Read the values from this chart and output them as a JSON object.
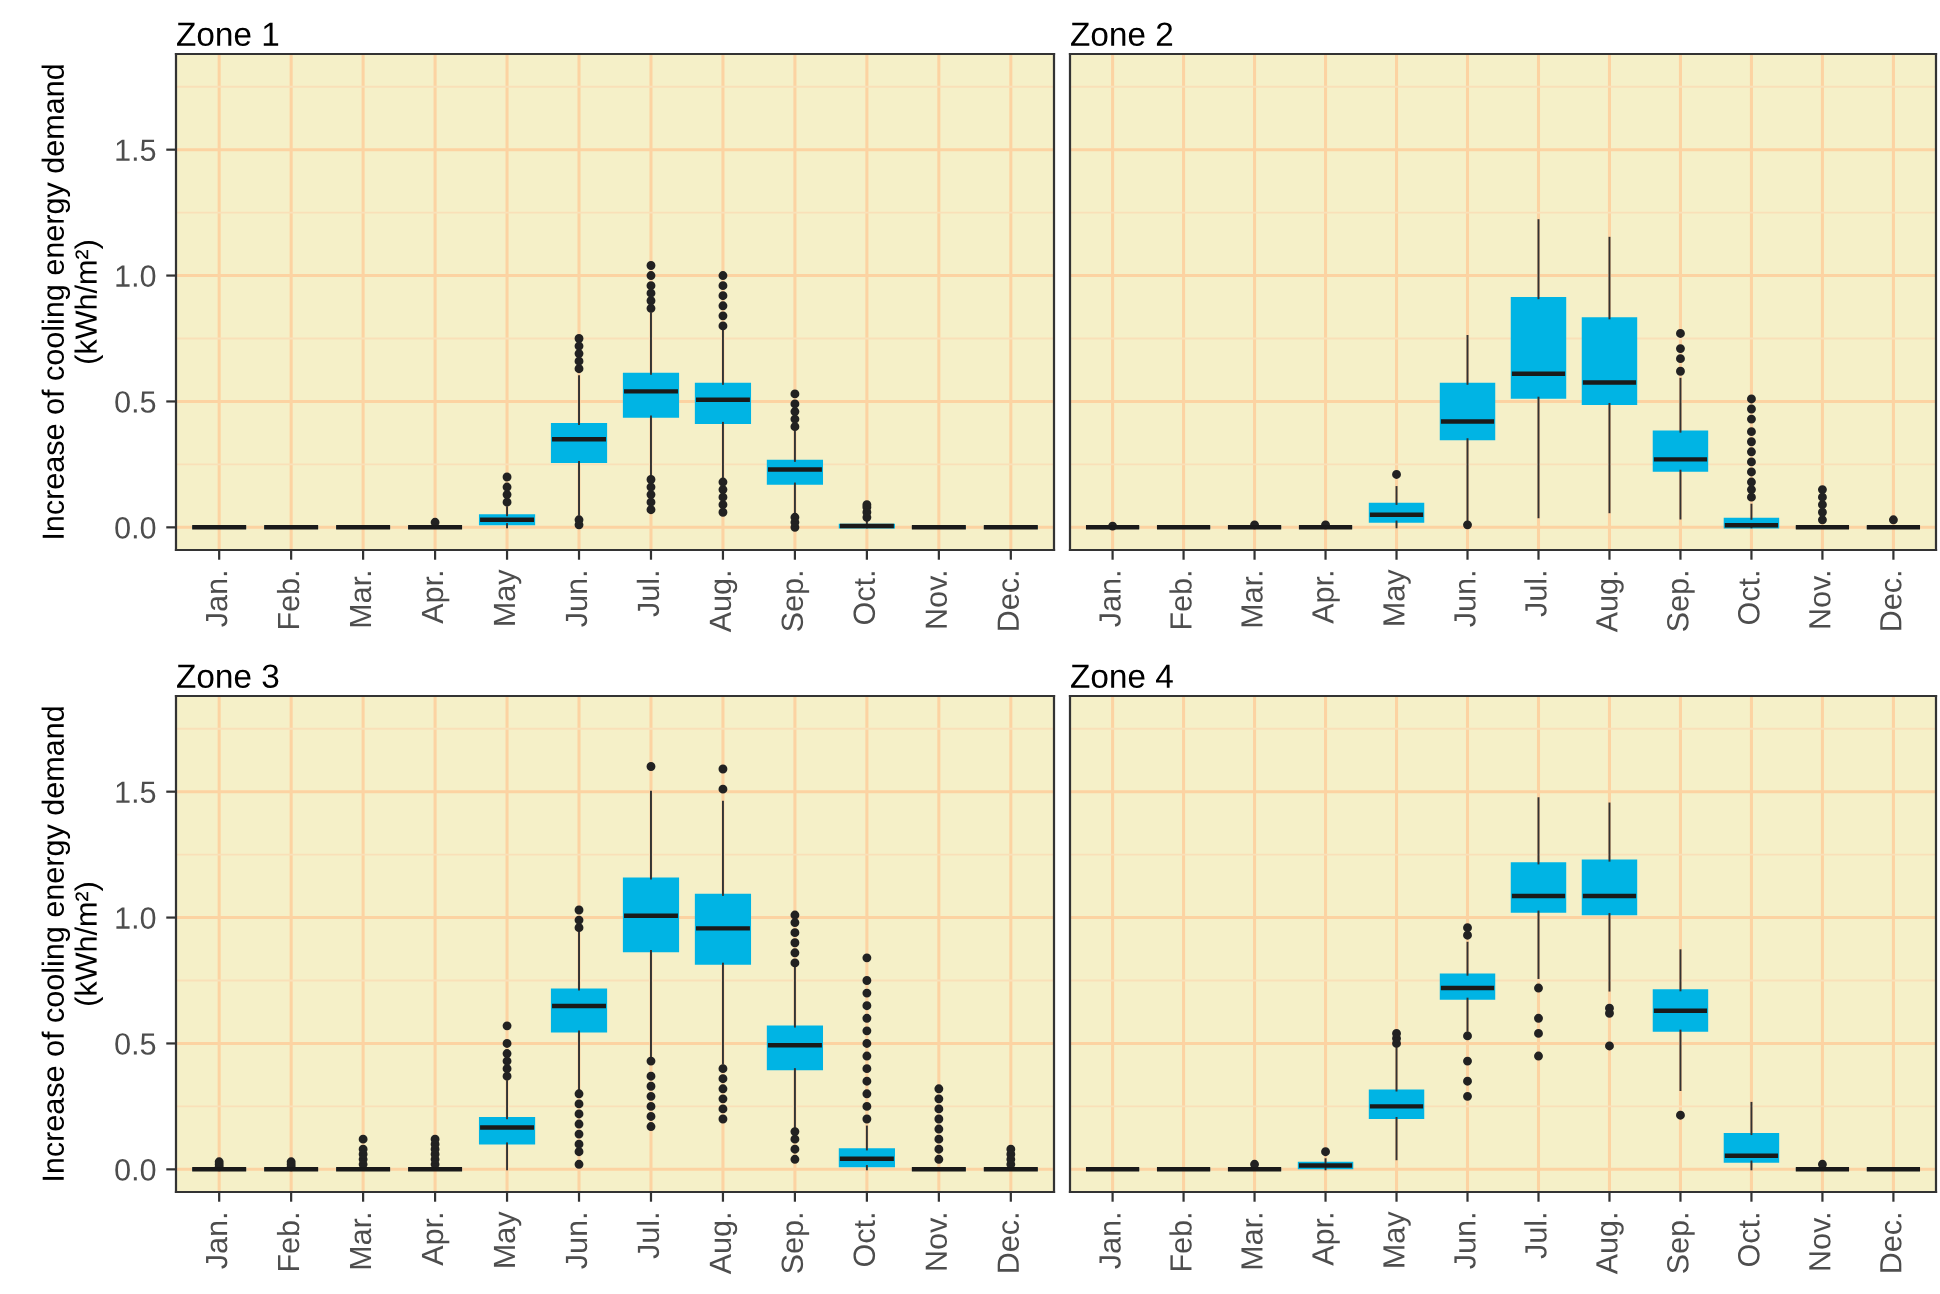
{
  "chart_data": [
    {
      "type": "box",
      "title": "Zone 1",
      "ylabel": "Increase of cooling energy demand\n(kWh/m²)",
      "categories": [
        "Jan.",
        "Feb.",
        "Mar.",
        "Apr.",
        "May",
        "Jun.",
        "Jul.",
        "Aug.",
        "Sep.",
        "Oct.",
        "Nov.",
        "Dec."
      ],
      "ylim": [
        -0.09,
        1.88
      ],
      "yticks": [
        {
          "value": 0,
          "label": "0.0"
        },
        {
          "value": 0.25,
          "label": null
        },
        {
          "value": 0.5,
          "label": "0.5"
        },
        {
          "value": 0.75,
          "label": null
        },
        {
          "value": 1,
          "label": "1.0"
        },
        {
          "value": 1.25,
          "label": null
        },
        {
          "value": 1.5,
          "label": "1.5"
        },
        {
          "value": 1.75,
          "label": null
        }
      ],
      "grid": true,
      "color": "#00b4e4",
      "boxes": [
        {
          "low": 0,
          "q1": 0,
          "median": 0,
          "q3": 0,
          "high": 0
        },
        {
          "low": 0,
          "q1": 0,
          "median": 0,
          "q3": 0,
          "high": 0
        },
        {
          "low": 0,
          "q1": 0,
          "median": 0,
          "q3": 0,
          "high": 0
        },
        {
          "low": 0,
          "q1": 0,
          "median": 0,
          "q3": 0,
          "high": 0,
          "outliers": [
            0.02
          ]
        },
        {
          "low": 0,
          "q1": 0.013,
          "median": 0.03,
          "q3": 0.048,
          "high": 0.08,
          "outliers": [
            0.1,
            0.13,
            0.16,
            0.2
          ]
        },
        {
          "low": 0.05,
          "q1": 0.26,
          "median": 0.35,
          "q3": 0.41,
          "high": 0.6,
          "outliers": [
            0.63,
            0.66,
            0.69,
            0.72,
            0.75,
            0.01,
            0.03
          ]
        },
        {
          "low": 0.2,
          "q1": 0.44,
          "median": 0.54,
          "q3": 0.61,
          "high": 0.85,
          "outliers": [
            0.87,
            0.9,
            0.93,
            0.96,
            1.0,
            1.04,
            0.07,
            0.1,
            0.13,
            0.16,
            0.19
          ]
        },
        {
          "low": 0.2,
          "q1": 0.415,
          "median": 0.507,
          "q3": 0.57,
          "high": 0.78,
          "outliers": [
            0.8,
            0.84,
            0.88,
            0.92,
            0.96,
            1.0,
            0.06,
            0.09,
            0.12,
            0.15,
            0.18
          ]
        },
        {
          "low": 0.05,
          "q1": 0.174,
          "median": 0.23,
          "q3": 0.264,
          "high": 0.38,
          "outliers": [
            0.4,
            0.43,
            0.46,
            0.49,
            0.53,
            0.0,
            0.02,
            0.04
          ]
        },
        {
          "low": 0,
          "q1": 0,
          "median": 0.005,
          "q3": 0.01,
          "high": 0.03,
          "outliers": [
            0.04,
            0.06,
            0.08,
            0.09
          ]
        },
        {
          "low": 0,
          "q1": 0,
          "median": 0,
          "q3": 0,
          "high": 0
        },
        {
          "low": 0,
          "q1": 0,
          "median": 0,
          "q3": 0,
          "high": 0
        }
      ]
    },
    {
      "type": "box",
      "title": "Zone 2",
      "categories": [
        "Jan.",
        "Feb.",
        "Mar.",
        "Apr.",
        "May",
        "Jun.",
        "Jul.",
        "Aug.",
        "Sep.",
        "Oct.",
        "Nov.",
        "Dec."
      ],
      "ylim": [
        -0.09,
        1.88
      ],
      "yticks": [
        {
          "value": 0,
          "label": null
        },
        {
          "value": 0.25,
          "label": null
        },
        {
          "value": 0.5,
          "label": null
        },
        {
          "value": 0.75,
          "label": null
        },
        {
          "value": 1,
          "label": null
        },
        {
          "value": 1.25,
          "label": null
        },
        {
          "value": 1.5,
          "label": null
        },
        {
          "value": 1.75,
          "label": null
        }
      ],
      "tick_labels": "x",
      "grid": true,
      "color": "#00b4e4",
      "boxes": [
        {
          "low": 0,
          "q1": 0,
          "median": 0,
          "q3": 0,
          "high": 0,
          "outliers": [
            0.005
          ]
        },
        {
          "low": 0,
          "q1": 0,
          "median": 0,
          "q3": 0,
          "high": 0
        },
        {
          "low": 0,
          "q1": 0,
          "median": 0,
          "q3": 0,
          "high": 0,
          "outliers": [
            0.01
          ]
        },
        {
          "low": 0,
          "q1": 0,
          "median": 0,
          "q3": 0,
          "high": 0,
          "outliers": [
            0.01
          ]
        },
        {
          "low": 0,
          "q1": 0.023,
          "median": 0.05,
          "q3": 0.093,
          "high": 0.16,
          "outliers": [
            0.21
          ]
        },
        {
          "low": 0.02,
          "q1": 0.35,
          "median": 0.42,
          "q3": 0.57,
          "high": 0.76,
          "outliers": [
            0.01
          ]
        },
        {
          "low": 0.04,
          "q1": 0.515,
          "median": 0.61,
          "q3": 0.91,
          "high": 1.22
        },
        {
          "low": 0.06,
          "q1": 0.49,
          "median": 0.575,
          "q3": 0.83,
          "high": 1.15
        },
        {
          "low": 0.035,
          "q1": 0.225,
          "median": 0.27,
          "q3": 0.38,
          "high": 0.59,
          "outliers": [
            0.62,
            0.67,
            0.71,
            0.77
          ]
        },
        {
          "low": 0,
          "q1": 0,
          "median": 0.008,
          "q3": 0.034,
          "high": 0.09,
          "outliers": [
            0.12,
            0.15,
            0.18,
            0.22,
            0.26,
            0.3,
            0.34,
            0.38,
            0.43,
            0.47,
            0.51
          ]
        },
        {
          "low": 0,
          "q1": 0,
          "median": 0,
          "q3": 0,
          "high": 0,
          "outliers": [
            0.03,
            0.06,
            0.09,
            0.12,
            0.15
          ]
        },
        {
          "low": 0,
          "q1": 0,
          "median": 0,
          "q3": 0,
          "high": 0,
          "outliers": [
            0.03
          ]
        }
      ]
    },
    {
      "type": "box",
      "title": "Zone 3",
      "ylabel": "Increase of cooling energy demand\n(kWh/m²)",
      "categories": [
        "Jan.",
        "Feb.",
        "Mar.",
        "Apr.",
        "May",
        "Jun.",
        "Jul.",
        "Aug.",
        "Sep.",
        "Oct.",
        "Nov.",
        "Dec."
      ],
      "ylim": [
        -0.09,
        1.88
      ],
      "yticks": [
        {
          "value": 0,
          "label": "0.0"
        },
        {
          "value": 0.25,
          "label": null
        },
        {
          "value": 0.5,
          "label": "0.5"
        },
        {
          "value": 0.75,
          "label": null
        },
        {
          "value": 1,
          "label": "1.0"
        },
        {
          "value": 1.25,
          "label": null
        },
        {
          "value": 1.5,
          "label": "1.5"
        },
        {
          "value": 1.75,
          "label": null
        }
      ],
      "grid": true,
      "color": "#00b4e4",
      "boxes": [
        {
          "low": 0,
          "q1": 0,
          "median": 0,
          "q3": 0,
          "high": 0,
          "outliers": [
            0.01,
            0.02,
            0.03
          ]
        },
        {
          "low": 0,
          "q1": 0,
          "median": 0,
          "q3": 0,
          "high": 0,
          "outliers": [
            0.01,
            0.02,
            0.03
          ]
        },
        {
          "low": 0,
          "q1": 0,
          "median": 0,
          "q3": 0,
          "high": 0,
          "outliers": [
            0.02,
            0.04,
            0.06,
            0.08,
            0.12
          ]
        },
        {
          "low": 0,
          "q1": 0,
          "median": 0,
          "q3": 0,
          "high": 0,
          "outliers": [
            0.02,
            0.04,
            0.06,
            0.08,
            0.1,
            0.12
          ]
        },
        {
          "low": 0,
          "q1": 0.103,
          "median": 0.166,
          "q3": 0.203,
          "high": 0.35,
          "outliers": [
            0.37,
            0.4,
            0.43,
            0.46,
            0.5,
            0.57
          ]
        },
        {
          "low": 0.31,
          "q1": 0.548,
          "median": 0.649,
          "q3": 0.714,
          "high": 0.95,
          "outliers": [
            0.96,
            0.99,
            1.03,
            0.02,
            0.07,
            0.1,
            0.14,
            0.18,
            0.22,
            0.26,
            0.3
          ]
        },
        {
          "low": 0.45,
          "q1": 0.867,
          "median": 1.007,
          "q3": 1.155,
          "high": 1.5,
          "outliers": [
            1.6,
            0.17,
            0.21,
            0.25,
            0.29,
            0.33,
            0.37,
            0.43
          ]
        },
        {
          "low": 0.42,
          "q1": 0.817,
          "median": 0.957,
          "q3": 1.09,
          "high": 1.46,
          "outliers": [
            1.51,
            1.59,
            0.2,
            0.24,
            0.28,
            0.32,
            0.36,
            0.4
          ]
        },
        {
          "low": 0.16,
          "q1": 0.398,
          "median": 0.493,
          "q3": 0.567,
          "high": 0.8,
          "outliers": [
            0.82,
            0.86,
            0.9,
            0.94,
            0.98,
            1.01,
            0.04,
            0.08,
            0.12,
            0.15
          ]
        },
        {
          "low": 0,
          "q1": 0.013,
          "median": 0.042,
          "q3": 0.079,
          "high": 0.17,
          "outliers": [
            0.2,
            0.25,
            0.3,
            0.35,
            0.4,
            0.45,
            0.5,
            0.55,
            0.6,
            0.65,
            0.7,
            0.75,
            0.84
          ]
        },
        {
          "low": 0,
          "q1": 0,
          "median": 0,
          "q3": 0,
          "high": 0,
          "outliers": [
            0.04,
            0.08,
            0.12,
            0.16,
            0.2,
            0.24,
            0.28,
            0.32
          ]
        },
        {
          "low": 0,
          "q1": 0,
          "median": 0,
          "q3": 0,
          "high": 0,
          "outliers": [
            0.02,
            0.04,
            0.06,
            0.08
          ]
        }
      ]
    },
    {
      "type": "box",
      "title": "Zone 4",
      "categories": [
        "Jan.",
        "Feb.",
        "Mar.",
        "Apr.",
        "May",
        "Jun.",
        "Jul.",
        "Aug.",
        "Sep.",
        "Oct.",
        "Nov.",
        "Dec."
      ],
      "ylim": [
        -0.09,
        1.88
      ],
      "yticks": [
        {
          "value": 0,
          "label": null
        },
        {
          "value": 0.25,
          "label": null
        },
        {
          "value": 0.5,
          "label": null
        },
        {
          "value": 0.75,
          "label": null
        },
        {
          "value": 1,
          "label": null
        },
        {
          "value": 1.25,
          "label": null
        },
        {
          "value": 1.5,
          "label": null
        },
        {
          "value": 1.75,
          "label": null
        }
      ],
      "tick_labels": "x",
      "grid": true,
      "color": "#00b4e4",
      "boxes": [
        {
          "low": 0,
          "q1": 0,
          "median": 0,
          "q3": 0,
          "high": 0
        },
        {
          "low": 0,
          "q1": 0,
          "median": 0,
          "q3": 0,
          "high": 0
        },
        {
          "low": 0,
          "q1": 0,
          "median": 0,
          "q3": 0,
          "high": 0,
          "outliers": [
            0.02
          ]
        },
        {
          "low": 0,
          "q1": 0.005,
          "median": 0.015,
          "q3": 0.026,
          "high": 0.04,
          "outliers": [
            0.07
          ]
        },
        {
          "low": 0.04,
          "q1": 0.204,
          "median": 0.25,
          "q3": 0.313,
          "high": 0.48,
          "outliers": [
            0.5,
            0.52,
            0.54
          ]
        },
        {
          "low": 0.55,
          "q1": 0.678,
          "median": 0.72,
          "q3": 0.773,
          "high": 0.9,
          "outliers": [
            0.93,
            0.96,
            0.53,
            0.43,
            0.35,
            0.29
          ]
        },
        {
          "low": 0.76,
          "q1": 1.024,
          "median": 1.086,
          "q3": 1.215,
          "high": 1.474,
          "outliers": [
            0.72,
            0.6,
            0.54,
            0.45
          ]
        },
        {
          "low": 0.71,
          "q1": 1.014,
          "median": 1.086,
          "q3": 1.226,
          "high": 1.453,
          "outliers": [
            0.64,
            0.62,
            0.49
          ]
        },
        {
          "low": 0.315,
          "q1": 0.551,
          "median": 0.63,
          "q3": 0.711,
          "high": 0.87,
          "outliers": [
            0.215
          ]
        },
        {
          "low": 0,
          "q1": 0.031,
          "median": 0.054,
          "q3": 0.14,
          "high": 0.264
        },
        {
          "low": 0,
          "q1": 0,
          "median": 0,
          "q3": 0,
          "high": 0,
          "outliers": [
            0.02
          ]
        },
        {
          "low": 0,
          "q1": 0,
          "median": 0,
          "q3": 0,
          "high": 0
        }
      ]
    }
  ]
}
